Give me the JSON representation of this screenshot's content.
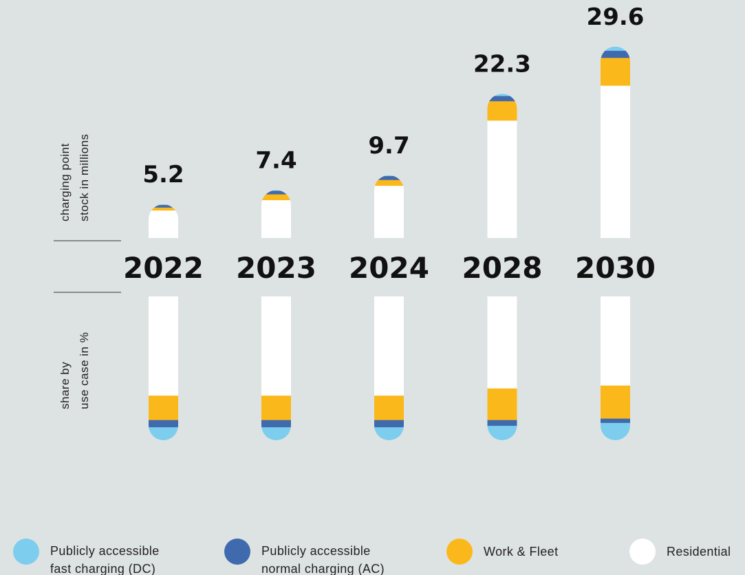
{
  "chart_data": [
    {
      "type": "bar",
      "stacked": true,
      "axis_label_lines": [
        "charging point",
        "stock in millions"
      ],
      "categories": [
        "2022",
        "2023",
        "2024",
        "2028",
        "2030"
      ],
      "totals": [
        5.2,
        7.4,
        9.7,
        22.3,
        29.6
      ],
      "series": [
        {
          "name": "Publicly accessible fast charging (DC)",
          "color": "#7dcdee",
          "values": [
            0.05,
            0.05,
            0.08,
            0.3,
            0.6
          ]
        },
        {
          "name": "Publicly accessible normal charging (AC)",
          "color": "#3f6aae",
          "values": [
            0.4,
            0.55,
            0.6,
            0.8,
            1.1
          ]
        },
        {
          "name": "Work & Fleet",
          "color": "#fbb81b",
          "values": [
            0.45,
            0.9,
            0.9,
            3.0,
            4.3
          ]
        },
        {
          "name": "Residential",
          "color": "#ffffff",
          "values": [
            4.3,
            5.9,
            8.12,
            18.2,
            23.6
          ]
        }
      ],
      "ylim": [
        0,
        30
      ]
    },
    {
      "type": "bar",
      "stacked": true,
      "percent": true,
      "axis_label_lines": [
        "share by",
        "use case in %"
      ],
      "categories": [
        "2022",
        "2023",
        "2024",
        "2028",
        "2030"
      ],
      "series": [
        {
          "name": "Publicly accessible fast charging (DC)",
          "color": "#7dcdee",
          "values": [
            9,
            9,
            9,
            10,
            12
          ]
        },
        {
          "name": "Publicly accessible normal charging (AC)",
          "color": "#3f6aae",
          "values": [
            5,
            5,
            5,
            4,
            3
          ]
        },
        {
          "name": "Work & Fleet",
          "color": "#fbb81b",
          "values": [
            17,
            17,
            17,
            22,
            23
          ]
        },
        {
          "name": "Residential",
          "color": "#ffffff",
          "values": [
            69,
            69,
            69,
            64,
            62
          ]
        }
      ],
      "ylim": [
        0,
        100
      ]
    }
  ],
  "legend": [
    {
      "name": "fast-dc",
      "color": "#7dcdee",
      "lines": [
        "Publicly accessible",
        "fast charging (DC)"
      ]
    },
    {
      "name": "normal-ac",
      "color": "#3f6aae",
      "lines": [
        "Publicly accessible",
        "normal charging (AC)"
      ]
    },
    {
      "name": "work-fleet",
      "color": "#fbb81b",
      "lines": [
        "Work & Fleet"
      ]
    },
    {
      "name": "residential",
      "color": "#ffffff",
      "lines": [
        "Residential"
      ]
    }
  ]
}
